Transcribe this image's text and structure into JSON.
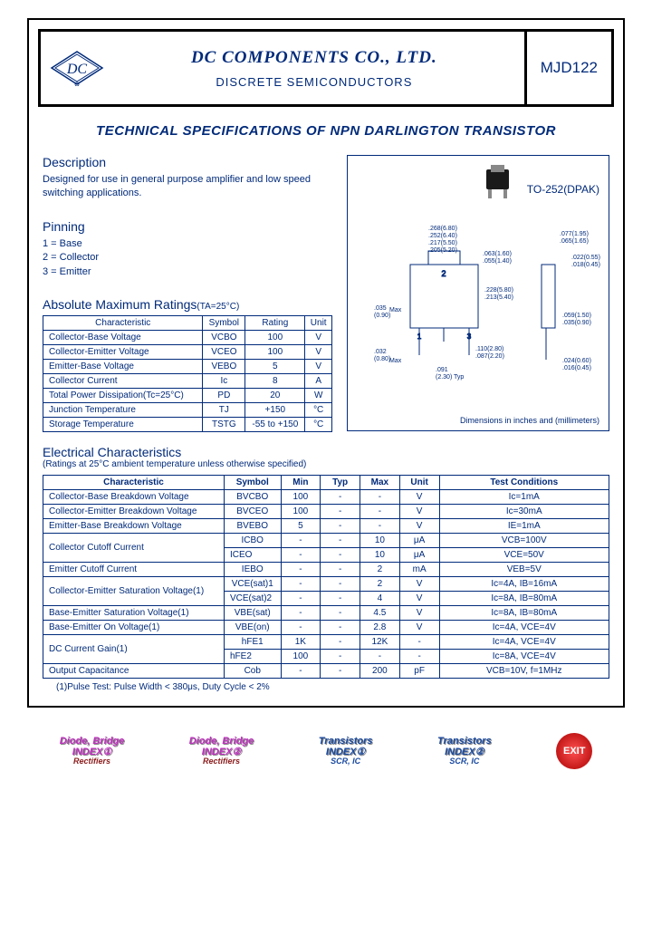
{
  "header": {
    "company": "DC COMPONENTS CO., LTD.",
    "subtitle": "DISCRETE SEMICONDUCTORS",
    "part": "MJD122"
  },
  "title": "TECHNICAL SPECIFICATIONS OF NPN DARLINGTON TRANSISTOR",
  "desc": {
    "heading": "Description",
    "text": "Designed for use in general purpose amplifier and low speed switching applications."
  },
  "pinning": {
    "heading": "Pinning",
    "p1": "1 = Base",
    "p2": "2 = Collector",
    "p3": "3 = Emitter"
  },
  "pkg": {
    "label": "TO-252(DPAK)",
    "dim_note": "Dimensions in inches and (millimeters)",
    "dims": {
      "d1": ".268(6.80)\n.252(6.40)",
      "d2": ".217(5.50)\n.205(5.20)",
      "d3": ".063(1.60)\n.055(1.40)",
      "d4": ".077(1.95)\n.065(1.65)",
      "d5": ".022(0.55)\n.018(0.45)",
      "d6": ".228(5.80)\n.213(5.40)",
      "d7": ".035\n(0.90)",
      "d8": ".032\n(0.80)",
      "d9": ".091\n(2.30)",
      "d10": ".110(2.80)\n.087(2.20)",
      "d11": ".059(1.50)\n.035(0.90)",
      "d12": ".024(0.60)\n.016(0.45)"
    }
  },
  "ratings": {
    "heading": "Absolute Maximum Ratings",
    "cond": "(TA=25°C)",
    "headers": [
      "Characteristic",
      "Symbol",
      "Rating",
      "Unit"
    ],
    "rows": [
      [
        "Collector-Base Voltage",
        "VCBO",
        "100",
        "V"
      ],
      [
        "Collector-Emitter Voltage",
        "VCEO",
        "100",
        "V"
      ],
      [
        "Emitter-Base Voltage",
        "VEBO",
        "5",
        "V"
      ],
      [
        "Collector Current",
        "Ic",
        "8",
        "A"
      ],
      [
        "Total Power Dissipation(Tc=25°C)",
        "PD",
        "20",
        "W"
      ],
      [
        "Junction Temperature",
        "TJ",
        "+150",
        "°C"
      ],
      [
        "Storage Temperature",
        "TSTG",
        "-55 to +150",
        "°C"
      ]
    ]
  },
  "elec": {
    "heading": "Electrical Characteristics",
    "sub": "(Ratings at 25°C ambient temperature unless otherwise specified)",
    "headers": [
      "Characteristic",
      "Symbol",
      "Min",
      "Typ",
      "Max",
      "Unit",
      "Test Conditions"
    ],
    "rows": [
      [
        "Collector-Base Breakdown Voltage",
        "BVCBO",
        "100",
        "-",
        "-",
        "V",
        "Ic=1mA"
      ],
      [
        "Collector-Emitter Breakdown Voltage",
        "BVCEO",
        "100",
        "-",
        "-",
        "V",
        "Ic=30mA"
      ],
      [
        "Emitter-Base Breakdown Voltage",
        "BVEBO",
        "5",
        "-",
        "-",
        "V",
        "IE=1mA"
      ],
      [
        "Collector Cutoff Current",
        "ICBO",
        "-",
        "-",
        "10",
        "μA",
        "VCB=100V"
      ],
      [
        "",
        "ICEO",
        "-",
        "-",
        "10",
        "μA",
        "VCE=50V"
      ],
      [
        "Emitter Cutoff Current",
        "IEBO",
        "-",
        "-",
        "2",
        "mA",
        "VEB=5V"
      ],
      [
        "Collector-Emitter Saturation Voltage(1)",
        "VCE(sat)1",
        "-",
        "-",
        "2",
        "V",
        "Ic=4A, IB=16mA"
      ],
      [
        "",
        "VCE(sat)2",
        "-",
        "-",
        "4",
        "V",
        "Ic=8A, IB=80mA"
      ],
      [
        "Base-Emitter Saturation Voltage(1)",
        "VBE(sat)",
        "-",
        "-",
        "4.5",
        "V",
        "Ic=8A, IB=80mA"
      ],
      [
        "Base-Emitter On Voltage(1)",
        "VBE(on)",
        "-",
        "-",
        "2.8",
        "V",
        "Ic=4A, VCE=4V"
      ],
      [
        "DC Current Gain(1)",
        "hFE1",
        "1K",
        "-",
        "12K",
        "-",
        "Ic=4A, VCE=4V"
      ],
      [
        "",
        "hFE2",
        "100",
        "-",
        "-",
        "-",
        "Ic=8A, VCE=4V"
      ],
      [
        "Output Capacitance",
        "Cob",
        "-",
        "-",
        "200",
        "pF",
        "VCB=10V, f=1MHz"
      ]
    ],
    "footnote": "(1)Pulse Test: Pulse Width < 380μs, Duty Cycle < 2%"
  },
  "footer": {
    "i1": {
      "l1": "Diode, Bridge",
      "l2": "INDEX①",
      "l3": "Rectifiers"
    },
    "i2": {
      "l1": "Diode, Bridge",
      "l2": "INDEX②",
      "l3": "Rectifiers"
    },
    "i3": {
      "l1": "Transistors",
      "l2": "INDEX①",
      "l3": "SCR, IC"
    },
    "i4": {
      "l1": "Transistors",
      "l2": "INDEX②",
      "l3": "SCR, IC"
    },
    "exit": "EXIT"
  }
}
